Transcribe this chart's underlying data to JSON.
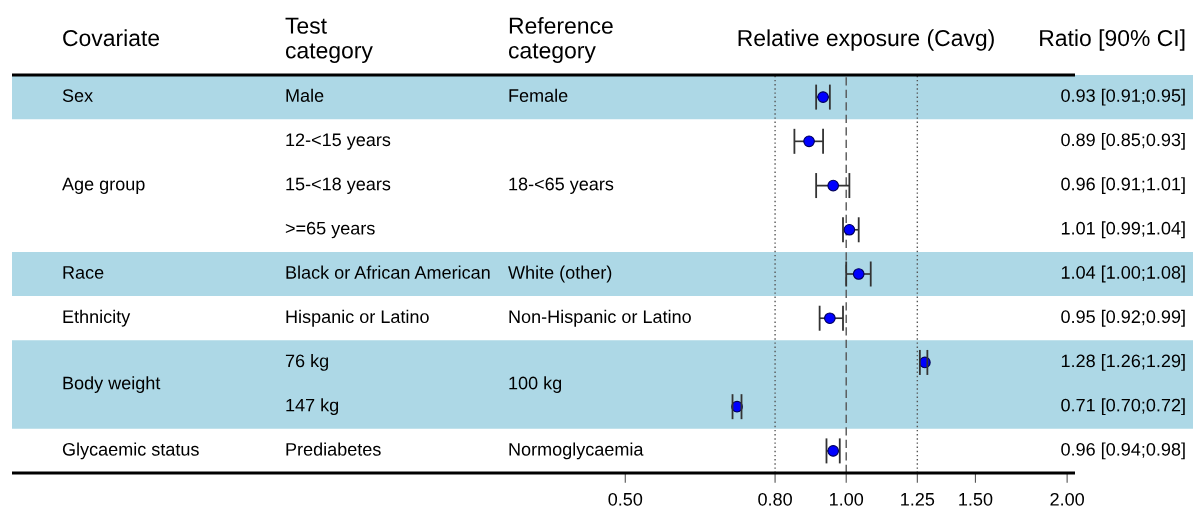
{
  "chart_data": {
    "type": "scatter",
    "orientation": "horizontal",
    "xlabel": "Relative exposure (Cavg)",
    "ylabel": "Test\ncategory",
    "categories": [
      "Male",
      "12-<15 years",
      "15-<18 years",
      ">=65 years",
      "Black or African American",
      "Hispanic or Latino",
      "76 kg",
      "147 kg",
      "Prediabetes"
    ],
    "values": [
      0.93,
      0.89,
      0.96,
      1.01,
      1.04,
      0.95,
      1.28,
      0.71,
      0.96
    ],
    "errors": [
      [
        0.91,
        0.95
      ],
      [
        0.85,
        0.93
      ],
      [
        0.91,
        1.01
      ],
      [
        0.99,
        1.04
      ],
      [
        1.0,
        1.08
      ],
      [
        0.92,
        0.99
      ],
      [
        1.26,
        1.29
      ],
      [
        0.7,
        0.72
      ],
      [
        0.94,
        0.98
      ]
    ],
    "value_labels": [
      "0.93 [0.91;0.95]",
      "0.89 [0.85;0.93]",
      "0.96 [0.91;1.01]",
      "1.01 [0.99;1.04]",
      "1.04 [1.00;1.08]",
      "0.95 [0.92;0.99]",
      "1.28 [1.26;1.29]",
      "0.71 [0.70;0.72]",
      "0.96 [0.94;0.98]"
    ],
    "color": "#0000ff",
    "marker": "circle",
    "log": "x",
    "xlim": [
      0.073,
      2.05
    ],
    "xticks": [
      {
        "value": 0.5,
        "label": "0.50"
      },
      {
        "value": 0.8,
        "label": "0.80"
      },
      {
        "value": 1,
        "label": "1.00"
      },
      {
        "value": 1.25,
        "label": "1.25"
      },
      {
        "value": 1.5,
        "label": "1.50"
      },
      {
        "value": 2,
        "label": "2.00"
      }
    ],
    "ref_lines": [
      {
        "axis": "x",
        "value": 0.8,
        "line_style": "dotted",
        "color": "#555555"
      },
      {
        "axis": "x",
        "value": 1,
        "line_style": "dashed",
        "color": "#555555"
      },
      {
        "axis": "x",
        "value": 1.25,
        "line_style": "dotted",
        "color": "#555555"
      }
    ],
    "bands": [
      {
        "axis": "y",
        "from": "Male",
        "to": "Male",
        "color": "#add8e6"
      },
      {
        "axis": "y",
        "from": "Black or African American",
        "to": "Black or African American",
        "color": "#add8e6"
      },
      {
        "axis": "y",
        "from": "76 kg",
        "to": "147 kg",
        "color": "#add8e6"
      }
    ],
    "annotations": [
      "Covariate",
      "Reference\ncategory",
      "Ratio [90% CI]",
      "Sex",
      "Female",
      "Age group",
      "18-<65 years",
      "Race",
      "White (other)",
      "Ethnicity",
      "Non-Hispanic or Latino",
      "Body weight",
      "100 kg",
      "Glycaemic status",
      "Normoglycaemia"
    ]
  }
}
